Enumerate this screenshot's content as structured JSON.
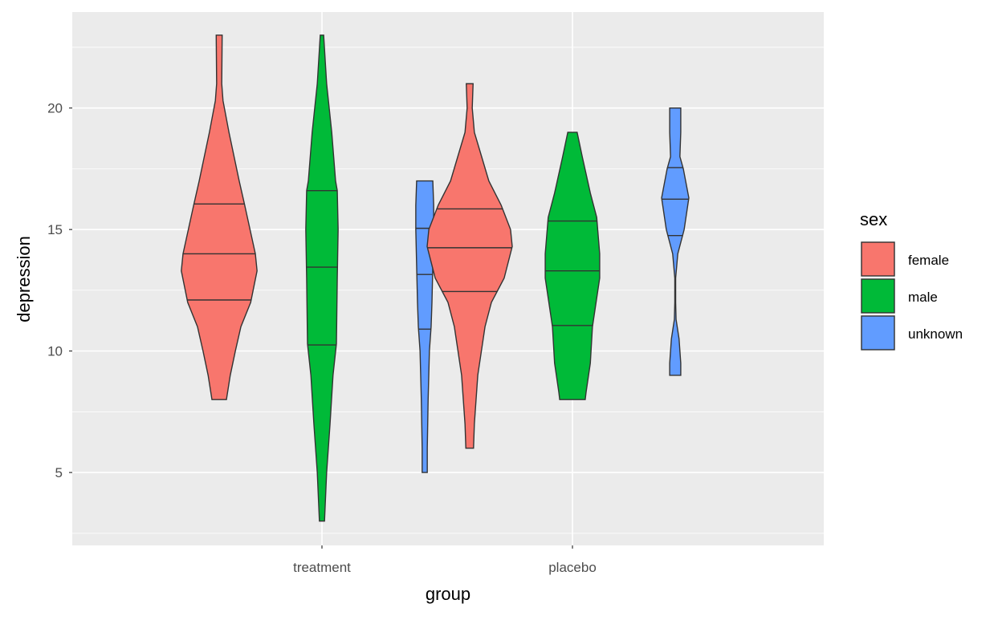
{
  "chart_data": {
    "type": "violin",
    "xlabel": "group",
    "ylabel": "depression",
    "categories": [
      "treatment",
      "placebo"
    ],
    "ylim": [
      2.0,
      23.95
    ],
    "yticks": [
      5,
      10,
      15,
      20
    ],
    "grid": true,
    "legend": {
      "title": "sex",
      "position": "right",
      "entries": [
        "female",
        "male",
        "unknown"
      ]
    },
    "colors": {
      "female": "#F8766D",
      "male": "#00BA38",
      "unknown": "#619CFF"
    },
    "draw_quantiles": [
      0.25,
      0.5,
      0.75
    ],
    "series": [
      {
        "group": "treatment",
        "sex": "female",
        "range": [
          8,
          23
        ],
        "quantiles": [
          12.1,
          14.0,
          16.05
        ],
        "density": [
          [
            8,
            0.17
          ],
          [
            9,
            0.26
          ],
          [
            10,
            0.38
          ],
          [
            11,
            0.51
          ],
          [
            12,
            0.74
          ],
          [
            13.3,
            0.89
          ],
          [
            14,
            0.85
          ],
          [
            16,
            0.6
          ],
          [
            17,
            0.47
          ],
          [
            19,
            0.23
          ],
          [
            20.3,
            0.09
          ],
          [
            21,
            0.06
          ],
          [
            23,
            0.07
          ]
        ]
      },
      {
        "group": "treatment",
        "sex": "male",
        "range": [
          3,
          23
        ],
        "quantiles": [
          10.25,
          13.45,
          16.6
        ],
        "density": [
          [
            3,
            0.06
          ],
          [
            5,
            0.11
          ],
          [
            7,
            0.19
          ],
          [
            9,
            0.26
          ],
          [
            10.3,
            0.34
          ],
          [
            13,
            0.36
          ],
          [
            15,
            0.38
          ],
          [
            16.6,
            0.36
          ],
          [
            17,
            0.32
          ],
          [
            19,
            0.23
          ],
          [
            21,
            0.11
          ],
          [
            23,
            0.04
          ]
        ]
      },
      {
        "group": "treatment",
        "sex": "unknown",
        "range": [
          5,
          17
        ],
        "quantiles": [
          10.9,
          13.15,
          15.05
        ],
        "density": [
          [
            5,
            0.06
          ],
          [
            6,
            0.06
          ],
          [
            8,
            0.08
          ],
          [
            10,
            0.11
          ],
          [
            11,
            0.15
          ],
          [
            12,
            0.17
          ],
          [
            13.5,
            0.19
          ],
          [
            15,
            0.21
          ],
          [
            16,
            0.21
          ],
          [
            17,
            0.19
          ]
        ]
      },
      {
        "group": "placebo",
        "sex": "female",
        "range": [
          6,
          21
        ],
        "quantiles": [
          12.45,
          14.25,
          15.85
        ],
        "density": [
          [
            6,
            0.09
          ],
          [
            7,
            0.11
          ],
          [
            9,
            0.19
          ],
          [
            11,
            0.36
          ],
          [
            12,
            0.51
          ],
          [
            13,
            0.81
          ],
          [
            14.3,
            1.0
          ],
          [
            15,
            0.96
          ],
          [
            16,
            0.74
          ],
          [
            17,
            0.45
          ],
          [
            18,
            0.28
          ],
          [
            19,
            0.11
          ],
          [
            20,
            0.06
          ],
          [
            21,
            0.08
          ]
        ]
      },
      {
        "group": "placebo",
        "sex": "male",
        "range": [
          8,
          19
        ],
        "quantiles": [
          11.05,
          13.3,
          15.35
        ],
        "density": [
          [
            8,
            0.3
          ],
          [
            8.3,
            0.32
          ],
          [
            9.5,
            0.42
          ],
          [
            11,
            0.47
          ],
          [
            13,
            0.64
          ],
          [
            14,
            0.64
          ],
          [
            15.5,
            0.57
          ],
          [
            16.5,
            0.42
          ],
          [
            18,
            0.23
          ],
          [
            19,
            0.11
          ]
        ]
      },
      {
        "group": "placebo",
        "sex": "unknown",
        "range": [
          9,
          20
        ],
        "quantiles": [
          14.75,
          16.25,
          17.55
        ],
        "density": [
          [
            9,
            0.13
          ],
          [
            9.5,
            0.13
          ],
          [
            10.5,
            0.09
          ],
          [
            11.3,
            0.02
          ],
          [
            12,
            0.01
          ],
          [
            13,
            0.01
          ],
          [
            14,
            0.06
          ],
          [
            15,
            0.21
          ],
          [
            16.3,
            0.32
          ],
          [
            17.5,
            0.19
          ],
          [
            18,
            0.11
          ],
          [
            19,
            0.13
          ],
          [
            20,
            0.13
          ]
        ]
      }
    ]
  }
}
